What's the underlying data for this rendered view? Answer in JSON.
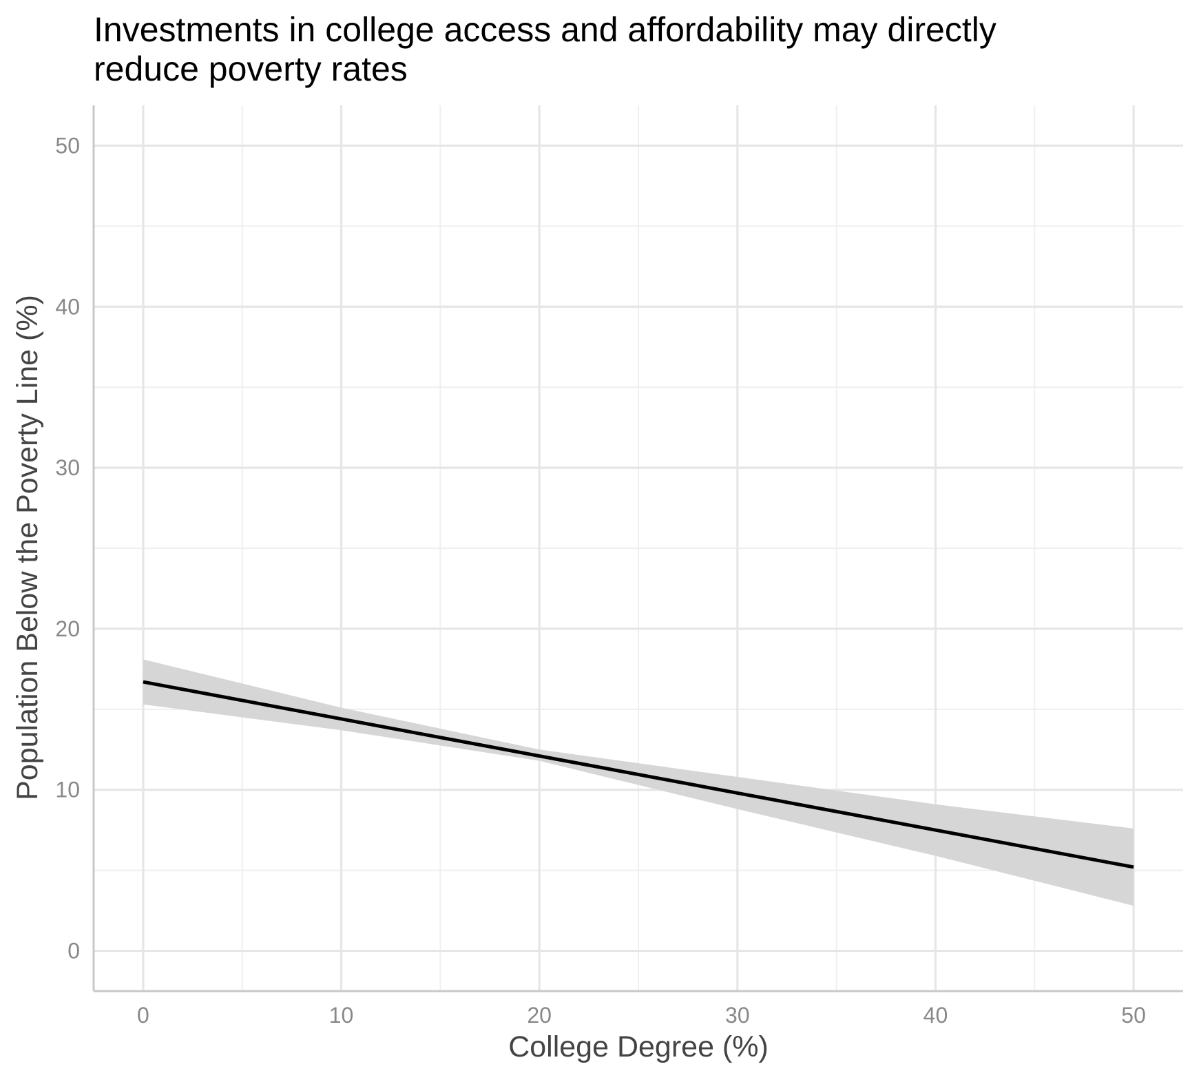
{
  "chart_data": {
    "type": "line",
    "title_lines": [
      "Investments in college access and affordability may directly",
      "reduce poverty rates"
    ],
    "xlabel": "College Degree (%)",
    "ylabel": "Population Below the Poverty Line (%)",
    "xlim": [
      -2.5,
      52.5
    ],
    "ylim": [
      -2.5,
      52.5
    ],
    "x_ticks": [
      0,
      10,
      20,
      30,
      40,
      50
    ],
    "y_ticks": [
      0,
      10,
      20,
      30,
      40,
      50
    ],
    "x_tick_labels": [
      "0",
      "10",
      "20",
      "30",
      "40",
      "50"
    ],
    "y_tick_labels": [
      "0",
      "10",
      "20",
      "30",
      "40",
      "50"
    ],
    "grid": true,
    "legend": "none",
    "line_color": "#000000",
    "ribbon_color": "#d6d6d6",
    "x": [
      0,
      10,
      20,
      30,
      40,
      50
    ],
    "series": [
      {
        "fit": [
          16.7,
          14.4,
          12.1,
          9.8,
          7.5,
          5.2
        ],
        "lower": [
          15.3,
          13.7,
          11.8,
          8.8,
          5.9,
          2.8
        ],
        "upper": [
          18.1,
          15.1,
          12.5,
          10.8,
          9.1,
          7.6
        ]
      }
    ]
  }
}
